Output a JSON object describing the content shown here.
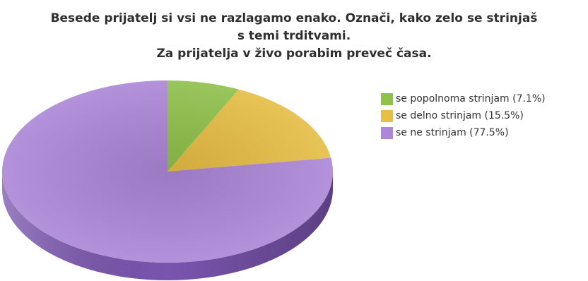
{
  "title": {
    "line1": "Besede prijatelj si vsi ne razlagamo enako.  Označi, kako zelo se strinjaš",
    "line2": "s temi trditvami.",
    "line3": "Za prijatelja v živo porabim preveč časa."
  },
  "chart_data": {
    "type": "pie",
    "style": "3d",
    "slices": [
      {
        "label": "se popolnoma strinjam (7.1%)",
        "value": 7.1,
        "color": "#8fc24a",
        "dark": "#5e8f2c"
      },
      {
        "label": "se delno strinjam (15.5%)",
        "value": 15.5,
        "color": "#e8be43",
        "dark": "#b88f1e"
      },
      {
        "label": "se ne strinjam (77.5%)",
        "value": 77.5,
        "color": "#ad87d9",
        "dark": "#7a55ae"
      }
    ],
    "start": "12 o'clock",
    "direction": "clockwise",
    "legend_position": "right"
  }
}
